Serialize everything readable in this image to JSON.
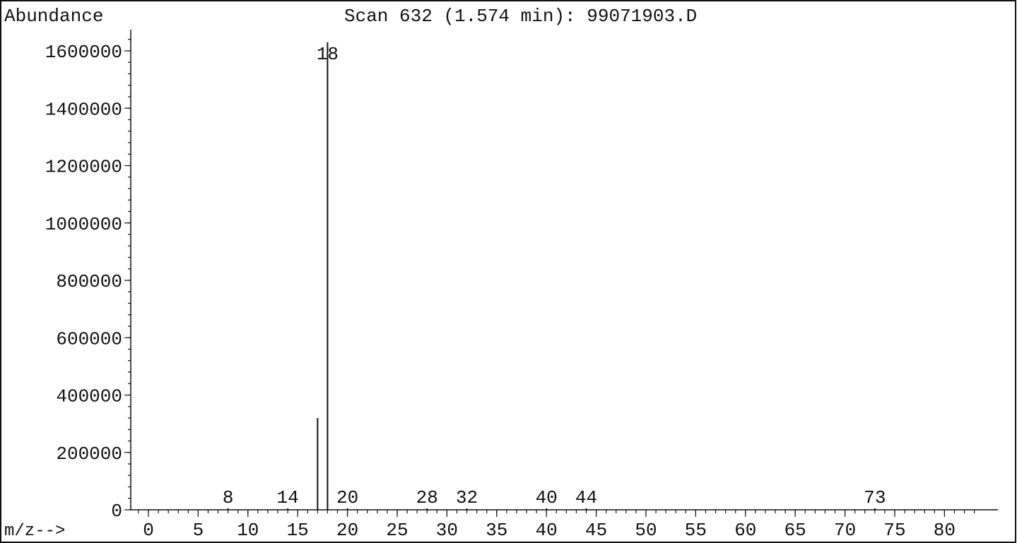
{
  "chart_data": {
    "type": "bar",
    "title": "Scan 632 (1.574 min): 99071903.D",
    "ylabel": "Abundance",
    "xlabel": "m/z-->",
    "xlim": [
      -2,
      83
    ],
    "ylim": [
      0,
      1660000
    ],
    "x_ticks": [
      0,
      5,
      10,
      15,
      20,
      25,
      30,
      35,
      40,
      45,
      50,
      55,
      60,
      65,
      70,
      75,
      80
    ],
    "y_ticks": [
      0,
      200000,
      400000,
      600000,
      800000,
      1000000,
      1200000,
      1400000,
      1600000
    ],
    "peaks": [
      {
        "mz": 8,
        "abundance": 0,
        "label": "8"
      },
      {
        "mz": 14,
        "abundance": 0,
        "label": "14"
      },
      {
        "mz": 17,
        "abundance": 320000,
        "label": ""
      },
      {
        "mz": 18,
        "abundance": 1630000,
        "label": "18"
      },
      {
        "mz": 20,
        "abundance": 0,
        "label": "20"
      },
      {
        "mz": 28,
        "abundance": 0,
        "label": "28"
      },
      {
        "mz": 32,
        "abundance": 0,
        "label": "32"
      },
      {
        "mz": 40,
        "abundance": 0,
        "label": "40"
      },
      {
        "mz": 44,
        "abundance": 0,
        "label": "44"
      },
      {
        "mz": 73,
        "abundance": 0,
        "label": "73"
      }
    ]
  }
}
